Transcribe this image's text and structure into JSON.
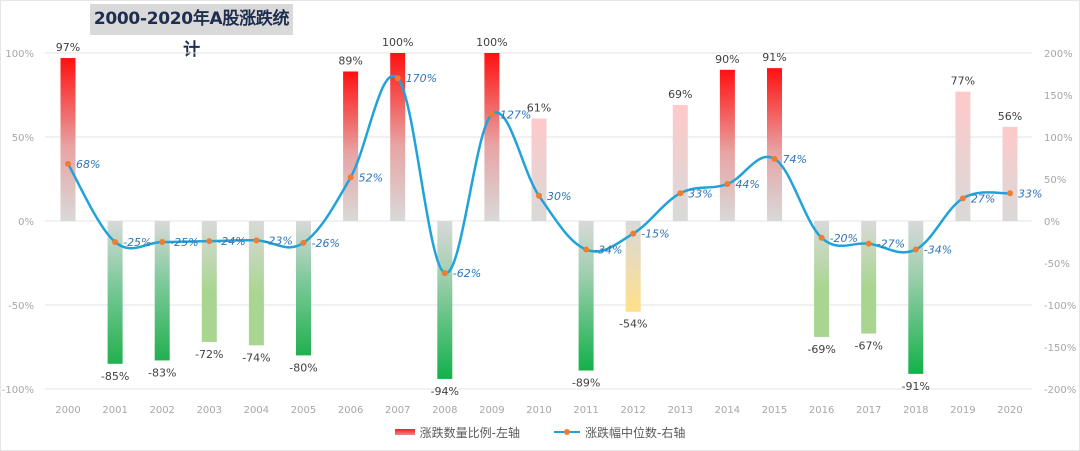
{
  "title": "2000-2020年A股涨跌统计",
  "chart_data": {
    "type": "bar+line",
    "title": "2000-2020年A股涨跌统计",
    "categories": [
      "2000",
      "2001",
      "2002",
      "2003",
      "2004",
      "2005",
      "2006",
      "2007",
      "2008",
      "2009",
      "2010",
      "2011",
      "2012",
      "2013",
      "2014",
      "2015",
      "2016",
      "2017",
      "2018",
      "2019",
      "2020"
    ],
    "series": [
      {
        "name": "涨跌数量比例-左轴",
        "type": "bar",
        "axis": "left",
        "values": [
          97,
          -85,
          -83,
          -72,
          -74,
          -80,
          89,
          100,
          -94,
          100,
          61,
          -89,
          -54,
          69,
          90,
          91,
          -69,
          -67,
          -91,
          77,
          56
        ],
        "labels": [
          "97%",
          "-85%",
          "-83%",
          "-72%",
          "-74%",
          "-80%",
          "89%",
          "100%",
          "-94%",
          "100%",
          "61%",
          "-89%",
          "-54%",
          "69%",
          "90%",
          "91%",
          "-69%",
          "-67%",
          "-91%",
          "77%",
          "56%"
        ]
      },
      {
        "name": "涨跌幅中位数-右轴",
        "type": "line",
        "axis": "right",
        "values": [
          68,
          -25,
          -25,
          -24,
          -23,
          -26,
          52,
          170,
          -62,
          127,
          30,
          -34,
          -15,
          33,
          44,
          74,
          -20,
          -27,
          -34,
          27,
          33
        ],
        "labels": [
          "68%",
          "-25%",
          "-25%",
          "-24%",
          "-23%",
          "-26%",
          "52%",
          "170%",
          "-62%",
          "127%",
          "30%",
          "-34%",
          "-15%",
          "33%",
          "44%",
          "74%",
          "-20%",
          "-27%",
          "-34%",
          "27%",
          "33%"
        ]
      }
    ],
    "left_axis": {
      "ylim": [
        -100,
        100
      ],
      "ticks": [
        "100%",
        "50%",
        "0%",
        "-50%",
        "-100%"
      ]
    },
    "right_axis": {
      "ylim": [
        -200,
        200
      ],
      "ticks": [
        "200%",
        "150%",
        "100%",
        "50%",
        "0%",
        "-50%",
        "-100%",
        "-150%",
        "-200%"
      ]
    },
    "grid": true,
    "legend_position": "bottom",
    "colors": {
      "bar_strong_up": "#ff1010",
      "bar_mild_up": "#ffc9c9",
      "bar_strong_down": "#12b14a",
      "bar_mild_down": "#a8d58f",
      "bar_yellow": "#ffe08a",
      "bar_base": "#d9d9d9",
      "line": "#1fa3d8",
      "marker": "#ed7d31",
      "line_label": "#2e75b6"
    }
  },
  "legend": {
    "bar_label": "涨跌数量比例-左轴",
    "line_label": "涨跌幅中位数-右轴"
  }
}
